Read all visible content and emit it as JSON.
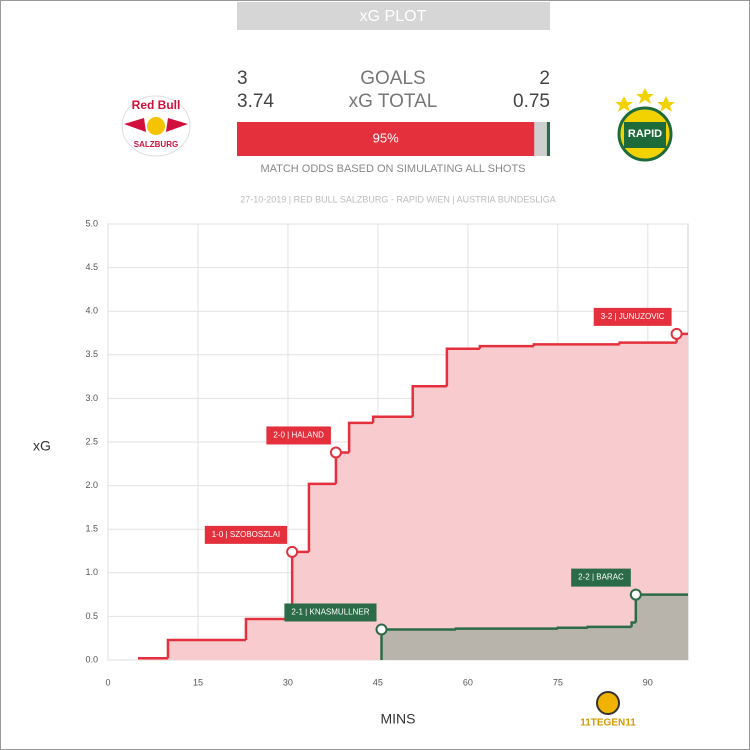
{
  "header": {
    "title": "xG PLOT"
  },
  "summary": {
    "home_goals": 3,
    "goals_label": "GOALS",
    "away_goals": 2,
    "home_xg": 3.74,
    "xg_label": "xG TOTAL",
    "away_xg": 0.75,
    "home_win": {
      "value": 95,
      "label": "95%"
    },
    "draw": 4,
    "away_win": 1,
    "odds_note": "MATCH ODDS BASED ON SIMULATING ALL SHOTS",
    "home_logo": {
      "top": "Red Bull",
      "bottom": "SALZBURG"
    },
    "away_logo": "RAPID"
  },
  "chart_data": {
    "type": "step",
    "subtitle": "27-10-2019 | RED BULL SALZBURG - RAPID WIEN | AUSTRIA BUNDESLIGA",
    "x_label": "MINS",
    "y_label": "xG",
    "xlim": [
      0,
      96.7
    ],
    "ylim": [
      0,
      5
    ],
    "xticks": [
      0,
      15,
      30,
      45,
      60,
      75,
      90
    ],
    "yticks": [
      {
        "value": 0,
        "label": "0.0"
      },
      0.5,
      {
        "value": 1,
        "label": "1.0"
      },
      1.5,
      {
        "value": 2,
        "label": "2.0"
      },
      2.5,
      {
        "value": 3,
        "label": "3.0"
      },
      3.5,
      {
        "value": 4,
        "label": "4.0"
      },
      4.5,
      {
        "value": 5,
        "label": "5.0"
      }
    ],
    "grid": true,
    "series": [
      {
        "color": "#e3303c",
        "fill": "#f8cbcf",
        "x": [
          5,
          10,
          23,
          30.7,
          33.5,
          38,
          40.2,
          44.2,
          50.8,
          56.5,
          62,
          71,
          85.3,
          94.8,
          96.7
        ],
        "values": [
          0.02,
          0.23,
          0.47,
          1.24,
          2.02,
          2.38,
          2.72,
          2.79,
          3.14,
          3.57,
          3.6,
          3.62,
          3.64,
          3.74,
          3.74
        ]
      },
      {
        "color": "#2c6b47",
        "fill": "#b8b4ab",
        "x": [
          45.6,
          58,
          75,
          80,
          87.3,
          88,
          96.7
        ],
        "values": [
          0.35,
          0.36,
          0.37,
          0.38,
          0.43,
          0.75,
          0.75
        ]
      }
    ],
    "annotations": [
      {
        "label": "1-0 | SZOBOSZLAI",
        "x": 30.7,
        "y": 1.24,
        "series": 0
      },
      {
        "label": "2-0 | HALAND",
        "x": 38,
        "y": 2.38,
        "series": 0
      },
      {
        "label": "2-1 | KNASMULLNER",
        "x": 45.6,
        "y": 0.35,
        "series": 1
      },
      {
        "label": "2-2 | BARAC",
        "x": 88,
        "y": 0.75,
        "series": 1
      },
      {
        "label": "3-2 | JUNUZOVIC",
        "x": 94.8,
        "y": 3.74,
        "series": 0
      }
    ],
    "brand": "11TEGEN11"
  }
}
